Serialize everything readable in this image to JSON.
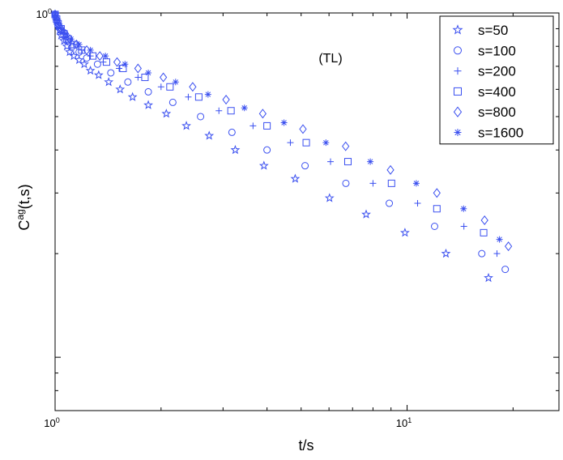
{
  "chart_data": {
    "type": "scatter",
    "title": "",
    "annotation": "(TL)",
    "xlabel": "t/s",
    "ylabel": {
      "base": "C",
      "sup": "ag",
      "rest": "(t,s)"
    },
    "x_scale": "log",
    "y_scale": "log",
    "xlim": [
      1,
      27
    ],
    "ylim": [
      0.07,
      1.0
    ],
    "x_ticks": [
      {
        "value": 1,
        "base": "10",
        "exp": "0"
      },
      {
        "value": 10,
        "base": "10",
        "exp": "1"
      }
    ],
    "y_ticks": [
      {
        "value": 1,
        "base": "10",
        "exp": "0"
      }
    ],
    "grid": false,
    "legend_position": "top-right",
    "color": "#3b50f0",
    "series": [
      {
        "name": "s=50",
        "marker": "star",
        "x": [
          1.0,
          1.01,
          1.02,
          1.03,
          1.04,
          1.06,
          1.08,
          1.1,
          1.13,
          1.17,
          1.21,
          1.26,
          1.33,
          1.42,
          1.53,
          1.66,
          1.84,
          2.07,
          2.36,
          2.74,
          3.25,
          3.92,
          4.81,
          6.02,
          7.65,
          9.86,
          12.89,
          17.03
        ],
        "y": [
          0.99,
          0.95,
          0.92,
          0.89,
          0.86,
          0.83,
          0.8,
          0.77,
          0.75,
          0.73,
          0.71,
          0.68,
          0.66,
          0.63,
          0.6,
          0.57,
          0.54,
          0.51,
          0.47,
          0.44,
          0.4,
          0.36,
          0.33,
          0.29,
          0.26,
          0.23,
          0.2,
          0.17
        ]
      },
      {
        "name": "s=100",
        "marker": "circle",
        "x": [
          1.0,
          1.01,
          1.02,
          1.04,
          1.06,
          1.08,
          1.12,
          1.17,
          1.23,
          1.32,
          1.44,
          1.61,
          1.84,
          2.16,
          2.59,
          3.18,
          4.0,
          5.13,
          6.7,
          8.9,
          11.97,
          16.3,
          19.0
        ],
        "y": [
          0.99,
          0.95,
          0.92,
          0.89,
          0.86,
          0.83,
          0.8,
          0.77,
          0.74,
          0.71,
          0.67,
          0.63,
          0.59,
          0.55,
          0.5,
          0.45,
          0.4,
          0.36,
          0.32,
          0.28,
          0.24,
          0.2,
          0.18
        ]
      },
      {
        "name": "s=200",
        "marker": "plus",
        "x": [
          1.0,
          1.01,
          1.02,
          1.04,
          1.06,
          1.09,
          1.13,
          1.19,
          1.26,
          1.37,
          1.52,
          1.72,
          2.0,
          2.39,
          2.92,
          3.65,
          4.66,
          6.06,
          8.0,
          10.71,
          14.5,
          18.0
        ],
        "y": [
          0.99,
          0.96,
          0.93,
          0.9,
          0.87,
          0.84,
          0.81,
          0.78,
          0.75,
          0.72,
          0.69,
          0.65,
          0.61,
          0.57,
          0.52,
          0.47,
          0.42,
          0.37,
          0.32,
          0.28,
          0.24,
          0.2
        ]
      },
      {
        "name": "s=400",
        "marker": "square",
        "x": [
          1.0,
          1.01,
          1.02,
          1.04,
          1.06,
          1.09,
          1.13,
          1.19,
          1.28,
          1.4,
          1.56,
          1.8,
          2.12,
          2.56,
          3.16,
          4.0,
          5.17,
          6.79,
          9.03,
          12.15,
          16.5
        ],
        "y": [
          0.99,
          0.96,
          0.93,
          0.9,
          0.87,
          0.84,
          0.81,
          0.78,
          0.75,
          0.72,
          0.69,
          0.65,
          0.61,
          0.57,
          0.52,
          0.47,
          0.42,
          0.37,
          0.32,
          0.27,
          0.23
        ]
      },
      {
        "name": "s=800",
        "marker": "diamond",
        "x": [
          1.0,
          1.01,
          1.02,
          1.04,
          1.07,
          1.1,
          1.15,
          1.23,
          1.34,
          1.5,
          1.72,
          2.03,
          2.46,
          3.06,
          3.89,
          5.06,
          6.69,
          8.97,
          12.15,
          16.6,
          19.4
        ],
        "y": [
          0.99,
          0.96,
          0.93,
          0.9,
          0.87,
          0.84,
          0.81,
          0.78,
          0.75,
          0.72,
          0.69,
          0.65,
          0.61,
          0.56,
          0.51,
          0.46,
          0.41,
          0.35,
          0.3,
          0.25,
          0.21
        ]
      },
      {
        "name": "s=1600",
        "marker": "asterisk",
        "x": [
          1.0,
          1.01,
          1.02,
          1.04,
          1.07,
          1.11,
          1.17,
          1.26,
          1.39,
          1.58,
          1.84,
          2.2,
          2.72,
          3.45,
          4.47,
          5.88,
          7.86,
          10.62,
          14.47,
          18.3
        ],
        "y": [
          0.99,
          0.96,
          0.93,
          0.9,
          0.87,
          0.84,
          0.81,
          0.78,
          0.75,
          0.71,
          0.67,
          0.63,
          0.58,
          0.53,
          0.48,
          0.42,
          0.37,
          0.32,
          0.27,
          0.22
        ]
      }
    ]
  }
}
